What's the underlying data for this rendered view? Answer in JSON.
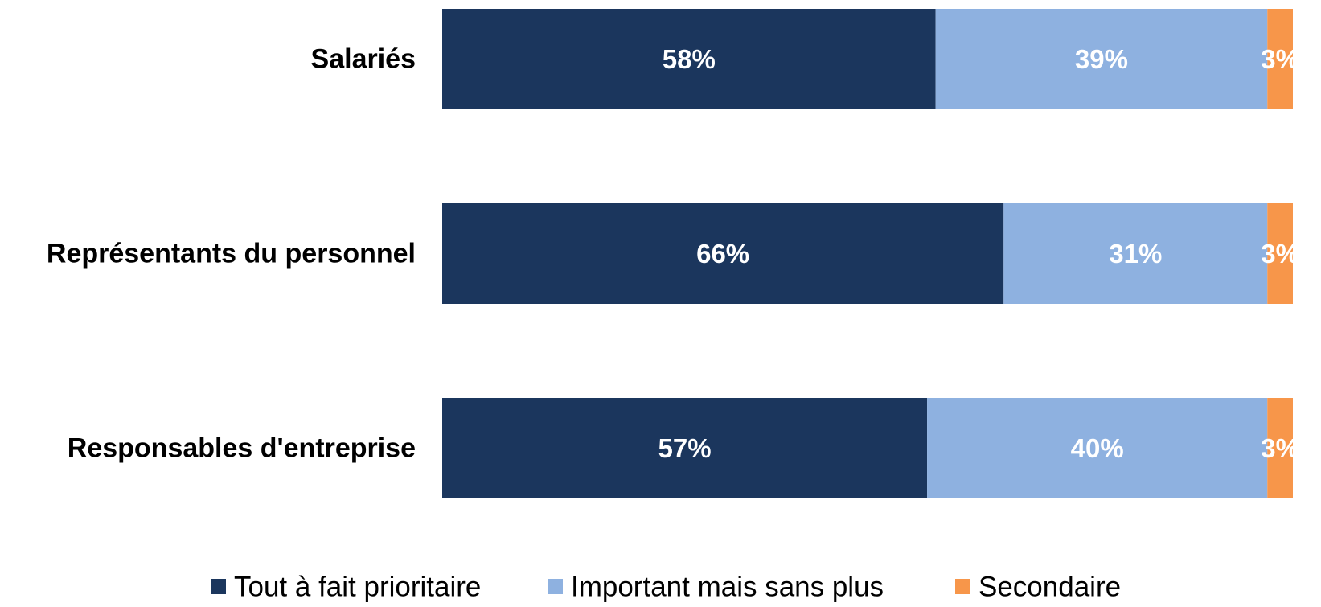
{
  "chart_data": {
    "type": "bar",
    "orientation": "horizontal",
    "stacked": true,
    "categories": [
      "Salariés",
      "Représentants du personnel",
      "Responsables d'entreprise"
    ],
    "series": [
      {
        "name": "Tout à fait prioritaire",
        "values": [
          58,
          66,
          57
        ],
        "labels": [
          "58%",
          "66%",
          "57%"
        ],
        "color": "#1b365d"
      },
      {
        "name": "Important mais sans plus",
        "values": [
          39,
          31,
          40
        ],
        "labels": [
          "39%",
          "31%",
          "40%"
        ],
        "color": "#8eb1e0"
      },
      {
        "name": "Secondaire",
        "values": [
          3,
          3,
          3
        ],
        "labels": [
          "3%",
          "3%",
          "3%"
        ],
        "color": "#f7964a"
      }
    ],
    "xlim": [
      0,
      100
    ],
    "grid": false,
    "legend_position": "bottom"
  }
}
